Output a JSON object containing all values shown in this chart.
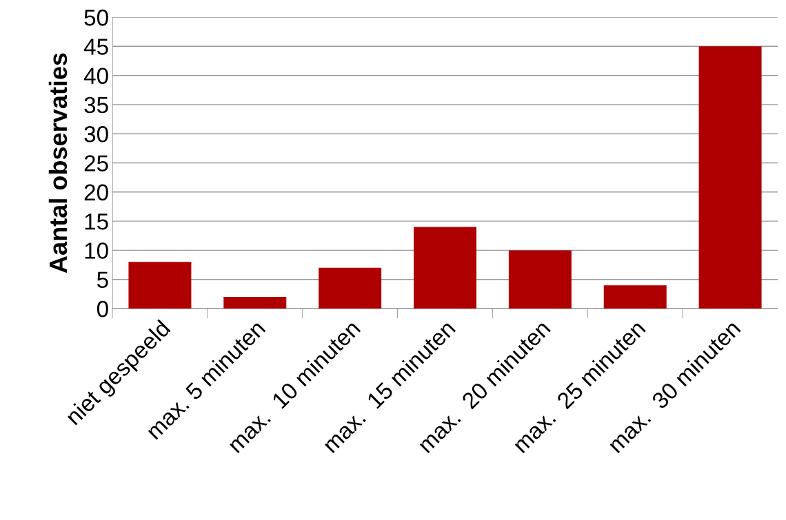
{
  "chart_data": {
    "type": "bar",
    "ylabel": "Aantal observaties",
    "categories": [
      "niet gespeeld",
      "max. 5 minuten",
      "max.  10 minuten",
      "max.  15 minuten",
      "max.  20 minuten",
      "max.  25 minuten",
      "max.  30 minuten"
    ],
    "values": [
      8,
      2,
      7,
      14,
      10,
      4,
      45
    ],
    "color": "#ae0000",
    "ylim": [
      0,
      50
    ],
    "yticks": [
      0,
      5,
      10,
      15,
      20,
      25,
      30,
      35,
      40,
      45,
      50
    ],
    "grid": "y"
  }
}
